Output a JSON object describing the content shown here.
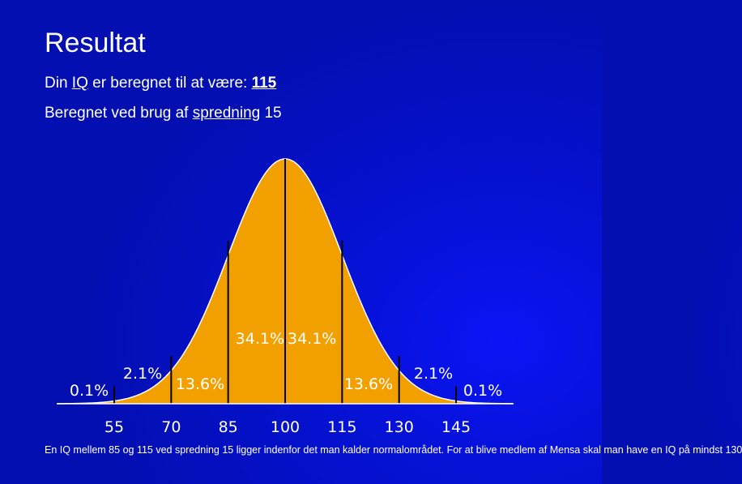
{
  "header": {
    "title": "Resultat",
    "iq_prefix": "Din ",
    "iq_link": "IQ",
    "iq_middle": " er beregnet til at være: ",
    "iq_value": "115",
    "spread_prefix": "Beregnet ved brug af ",
    "spread_link": "spredning",
    "spread_value": " 15"
  },
  "chart_data": {
    "type": "area",
    "distribution": "normal",
    "mean": 100,
    "sd": 15,
    "xlim": [
      40,
      160
    ],
    "tick_labels": [
      "55",
      "70",
      "85",
      "100",
      "115",
      "130",
      "145"
    ],
    "ticks": [
      55,
      70,
      85,
      100,
      115,
      130,
      145
    ],
    "segment_labels": [
      {
        "text": "0.1%",
        "x": 47
      },
      {
        "text": "2.1%",
        "x": 62.5
      },
      {
        "text": "13.6%",
        "x": 77.5
      },
      {
        "text": "34.1%",
        "x": 92.5
      },
      {
        "text": "34.1%",
        "x": 107.5
      },
      {
        "text": "13.6%",
        "x": 122.5
      },
      {
        "text": "2.1%",
        "x": 137.5
      },
      {
        "text": "0.1%",
        "x": 153
      }
    ],
    "fill_color": "#f2a000",
    "line_color": "#ffffff",
    "divider_color": "#000000"
  },
  "footer": {
    "note": "En IQ mellem 85 og 115 ved spredning 15 ligger indenfor det man kalder normalområdet. For at blive medlem af Mensa skal man have en IQ på mindst 130"
  }
}
